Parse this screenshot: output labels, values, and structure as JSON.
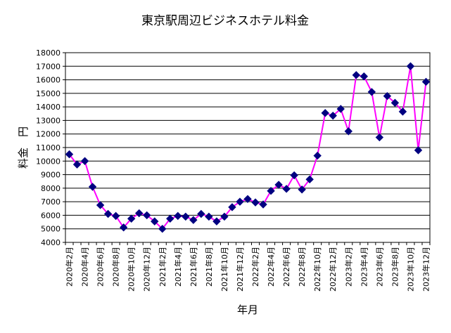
{
  "chart_data": {
    "type": "line",
    "title": "東京駅周辺ビジネスホテル料金",
    "xlabel": "年月",
    "ylabel": "料金　円",
    "ylim": [
      4000,
      18000
    ],
    "yticks": [
      4000,
      5000,
      6000,
      7000,
      8000,
      9000,
      10000,
      11000,
      12000,
      13000,
      14000,
      15000,
      16000,
      17000,
      18000
    ],
    "grid": true,
    "x_tick_labels": [
      "2020年2月",
      "2020年4月",
      "2020年6月",
      "2020年8月",
      "2020年10月",
      "2020年12月",
      "2021年2月",
      "2021年4月",
      "2021年6月",
      "2021年8月",
      "2021年10月",
      "2021年12月",
      "2022年2月",
      "2022年4月",
      "2022年6月",
      "2022年8月",
      "2022年10月",
      "2022年12月",
      "2023年2月",
      "2023年4月",
      "2023年6月",
      "2023年8月",
      "2023年10月",
      "2023年12月"
    ],
    "series": [
      {
        "name": "料金",
        "line_color": "#ff00ff",
        "marker_color": "#000080",
        "values": [
          10500,
          9750,
          10000,
          8100,
          6750,
          6100,
          5950,
          5100,
          5750,
          6150,
          6000,
          5550,
          5000,
          5750,
          5950,
          5900,
          5650,
          6100,
          5900,
          5550,
          5900,
          6600,
          7000,
          7200,
          6950,
          6800,
          7800,
          8250,
          7950,
          8950,
          7900,
          8650,
          10400,
          13550,
          13350,
          13850,
          12200,
          16350,
          16250,
          15100,
          11750,
          14800,
          14300,
          13650,
          17000,
          10800,
          15850
        ]
      }
    ]
  },
  "colors": {
    "background": "#ffffff",
    "plot_area": "#ffffff",
    "grid": "#000000",
    "axis": "#000000"
  }
}
